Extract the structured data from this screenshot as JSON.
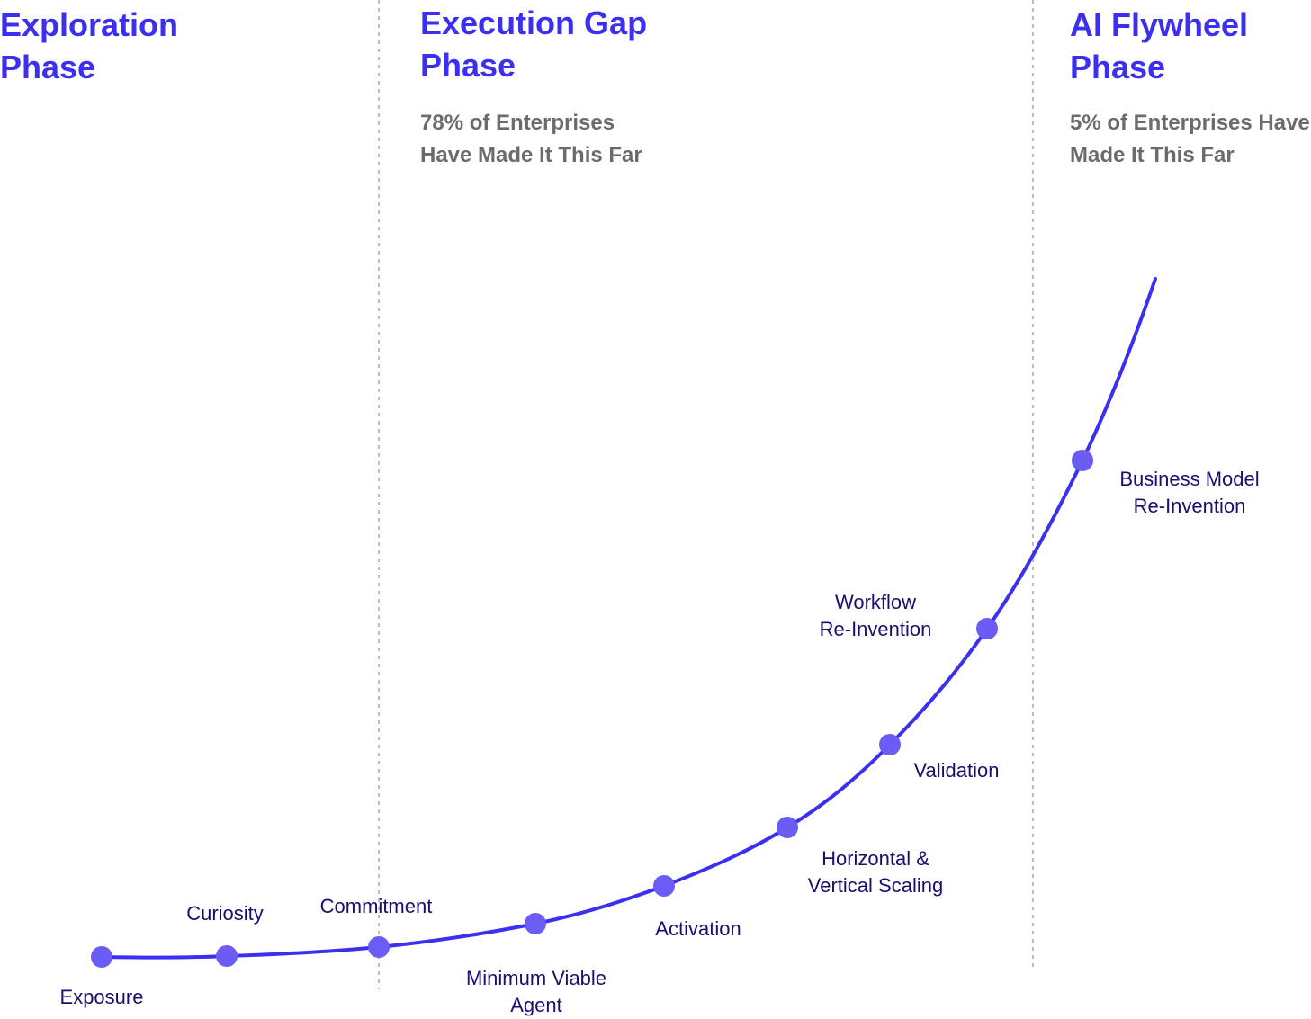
{
  "colors": {
    "accent": "#3b2ff0",
    "curve": "#3b2ff0",
    "node": "#6b5cf5",
    "subtitle": "#6b6b6b",
    "label": "#1a0f6e",
    "divider": "#bcbcbc"
  },
  "phases": [
    {
      "title_line1": "Exploration",
      "title_line2": "Phase",
      "subtitle_line1": "",
      "subtitle_line2": ""
    },
    {
      "title_line1": "Execution Gap",
      "title_line2": "Phase",
      "subtitle_line1": "78% of Enterprises",
      "subtitle_line2": "Have Made It This Far"
    },
    {
      "title_line1": "AI Flywheel",
      "title_line2": "Phase",
      "subtitle_line1": "5% of Enterprises Have",
      "subtitle_line2": "Made It This Far"
    }
  ],
  "milestones": [
    {
      "line1": "Exposure",
      "line2": ""
    },
    {
      "line1": "Curiosity",
      "line2": ""
    },
    {
      "line1": "Commitment",
      "line2": ""
    },
    {
      "line1": "Minimum Viable",
      "line2": "Agent"
    },
    {
      "line1": "Activation",
      "line2": ""
    },
    {
      "line1": "Horizontal &",
      "line2": "Vertical Scaling"
    },
    {
      "line1": "Validation",
      "line2": ""
    },
    {
      "line1": "Workflow",
      "line2": "Re-Invention"
    },
    {
      "line1": "Business Model",
      "line2": "Re-Invention"
    }
  ]
}
